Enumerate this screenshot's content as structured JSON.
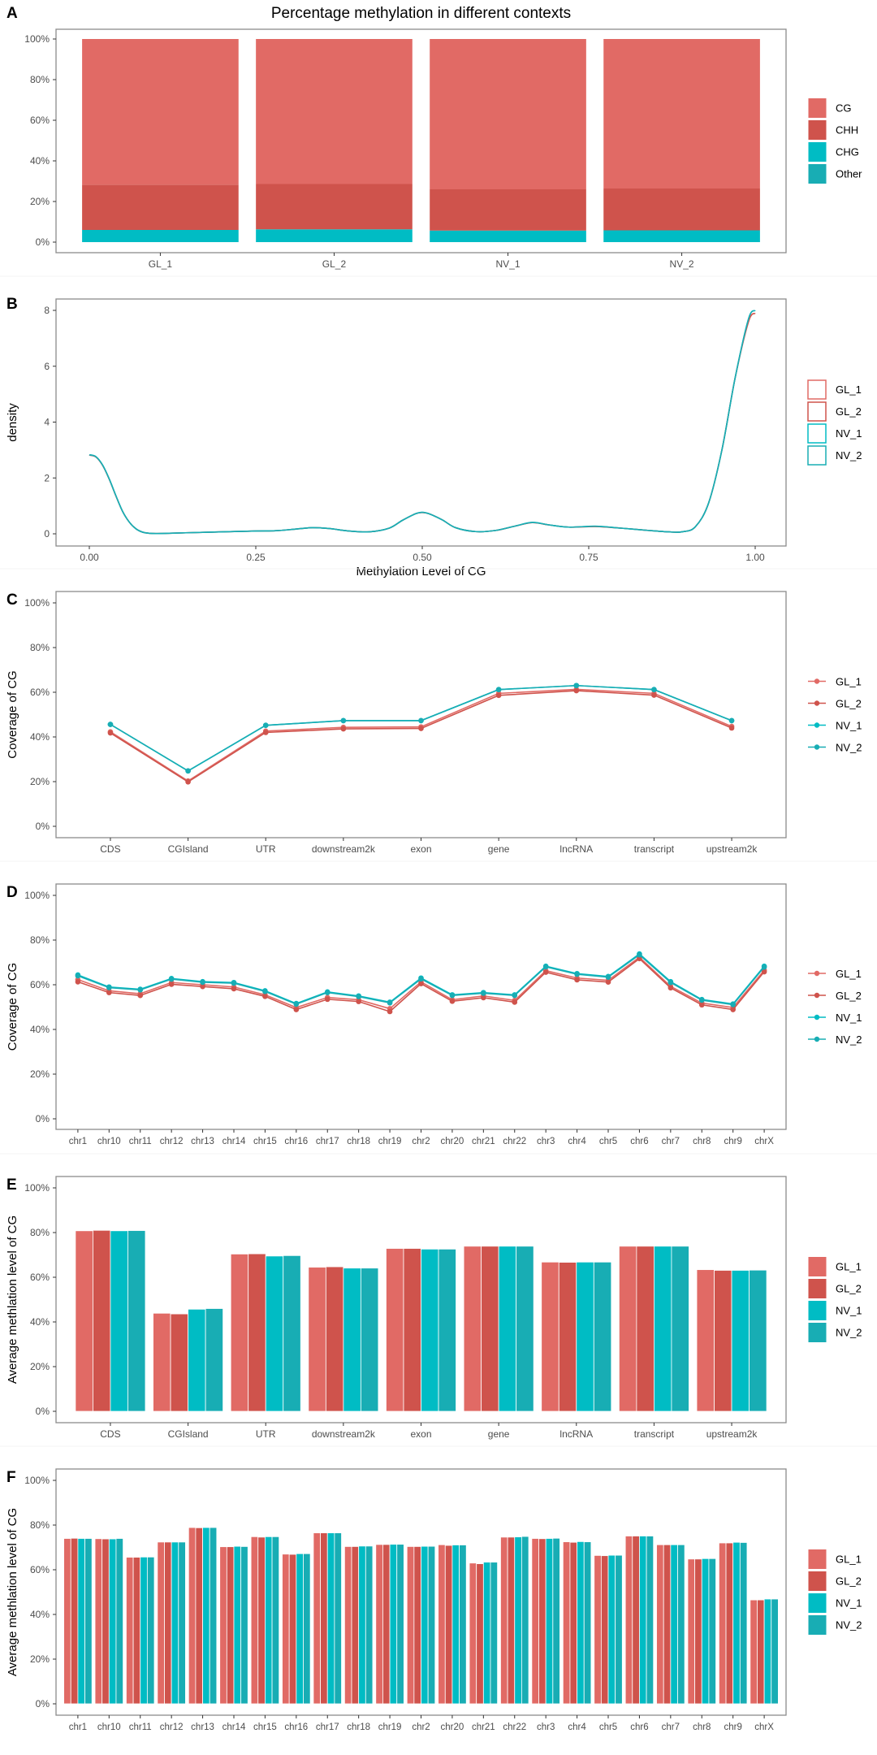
{
  "figure": {
    "panels": [
      "A",
      "B",
      "C",
      "D",
      "E",
      "F"
    ]
  },
  "colors": {
    "GL_1": "#E16A65",
    "GL_2": "#CF534C",
    "NV_1": "#00BCC4",
    "NV_2": "#18ADB4",
    "CG": "#E16A65",
    "CHH": "#CF534C",
    "CHG": "#00BCC4",
    "Other": "#18ADB4",
    "axis": "#7f7f7f",
    "tick_text": "#4d4d4d"
  },
  "chart_data": [
    {
      "id": "A",
      "panel_label": "A",
      "type": "bar",
      "stacked": true,
      "title": "Percentage methylation in different contexts",
      "xlabel": "",
      "ylabel": "",
      "categories": [
        "GL_1",
        "GL_2",
        "NV_1",
        "NV_2"
      ],
      "yticks": [
        "0%",
        "20%",
        "40%",
        "60%",
        "80%",
        "100%"
      ],
      "ylim": [
        0,
        100
      ],
      "legend_position": "right",
      "series": [
        {
          "name": "CG",
          "values": [
            71.7,
            71.4,
            74.0,
            73.6
          ]
        },
        {
          "name": "CHH",
          "values": [
            22.3,
            22.3,
            20.3,
            20.6
          ]
        },
        {
          "name": "CHG",
          "values": [
            6.0,
            6.3,
            5.7,
            5.8
          ]
        },
        {
          "name": "Other",
          "values": [
            0,
            0,
            0,
            0
          ]
        }
      ],
      "stack_order_bottom_to_top": [
        "Other",
        "CHG",
        "CHH",
        "CG"
      ]
    },
    {
      "id": "B",
      "panel_label": "B",
      "type": "line",
      "subtype": "density",
      "title": "",
      "xlabel": "Methylation Level of CG",
      "ylabel": "density",
      "xlim": [
        0,
        1
      ],
      "ylim": [
        0,
        8
      ],
      "xticks": [
        "0.00",
        "0.25",
        "0.50",
        "0.75",
        "1.00"
      ],
      "yticks": [
        "0",
        "2",
        "4",
        "6",
        "8"
      ],
      "legend_position": "right",
      "legend_style": "box",
      "x": [
        0.0,
        0.01,
        0.02,
        0.03,
        0.04,
        0.05,
        0.06,
        0.07,
        0.08,
        0.09,
        0.1,
        0.12,
        0.15,
        0.2,
        0.25,
        0.28,
        0.31,
        0.335,
        0.36,
        0.39,
        0.42,
        0.45,
        0.47,
        0.49,
        0.5,
        0.51,
        0.53,
        0.55,
        0.58,
        0.61,
        0.64,
        0.665,
        0.69,
        0.72,
        0.76,
        0.8,
        0.84,
        0.87,
        0.89,
        0.91,
        0.93,
        0.95,
        0.97,
        0.99,
        1.0
      ],
      "series": [
        {
          "name": "GL_1",
          "values": [
            2.82,
            2.75,
            2.45,
            1.95,
            1.35,
            0.8,
            0.42,
            0.18,
            0.06,
            0.02,
            0.01,
            0.02,
            0.04,
            0.07,
            0.1,
            0.11,
            0.17,
            0.22,
            0.19,
            0.1,
            0.07,
            0.2,
            0.48,
            0.72,
            0.76,
            0.72,
            0.5,
            0.22,
            0.08,
            0.12,
            0.28,
            0.4,
            0.32,
            0.24,
            0.26,
            0.2,
            0.12,
            0.07,
            0.07,
            0.25,
            1.1,
            3.0,
            5.6,
            7.6,
            7.9
          ]
        },
        {
          "name": "GL_2",
          "values": [
            2.82,
            2.75,
            2.45,
            1.95,
            1.35,
            0.8,
            0.42,
            0.18,
            0.06,
            0.02,
            0.01,
            0.02,
            0.04,
            0.07,
            0.1,
            0.11,
            0.17,
            0.22,
            0.19,
            0.1,
            0.07,
            0.2,
            0.48,
            0.72,
            0.76,
            0.72,
            0.5,
            0.22,
            0.08,
            0.12,
            0.28,
            0.4,
            0.32,
            0.24,
            0.26,
            0.2,
            0.12,
            0.07,
            0.07,
            0.25,
            1.1,
            3.0,
            5.6,
            7.6,
            7.9
          ]
        },
        {
          "name": "NV_1",
          "values": [
            2.83,
            2.76,
            2.46,
            1.96,
            1.36,
            0.8,
            0.42,
            0.18,
            0.06,
            0.02,
            0.01,
            0.02,
            0.04,
            0.07,
            0.1,
            0.11,
            0.17,
            0.22,
            0.19,
            0.1,
            0.07,
            0.2,
            0.48,
            0.72,
            0.77,
            0.72,
            0.5,
            0.22,
            0.08,
            0.12,
            0.28,
            0.41,
            0.32,
            0.24,
            0.27,
            0.2,
            0.12,
            0.07,
            0.07,
            0.25,
            1.1,
            3.0,
            5.6,
            7.7,
            8.0
          ]
        },
        {
          "name": "NV_2",
          "values": [
            2.83,
            2.76,
            2.46,
            1.96,
            1.36,
            0.8,
            0.42,
            0.18,
            0.06,
            0.02,
            0.01,
            0.02,
            0.04,
            0.07,
            0.1,
            0.11,
            0.17,
            0.22,
            0.19,
            0.1,
            0.07,
            0.2,
            0.48,
            0.72,
            0.77,
            0.72,
            0.5,
            0.22,
            0.08,
            0.12,
            0.28,
            0.41,
            0.32,
            0.24,
            0.27,
            0.2,
            0.12,
            0.07,
            0.07,
            0.25,
            1.1,
            3.0,
            5.6,
            7.7,
            8.0
          ]
        }
      ]
    },
    {
      "id": "C",
      "panel_label": "C",
      "type": "line",
      "title": "",
      "xlabel": "",
      "ylabel": "Coverage of CG",
      "categories": [
        "CDS",
        "CGIsland",
        "UTR",
        "downstream2k",
        "exon",
        "gene",
        "lncRNA",
        "transcript",
        "upstream2k"
      ],
      "yticks": [
        "0%",
        "20%",
        "40%",
        "60%",
        "80%",
        "100%"
      ],
      "ylim": [
        0,
        100
      ],
      "legend_position": "right",
      "series": [
        {
          "name": "GL_1",
          "values": [
            42.3,
            20.3,
            42.6,
            44.3,
            44.5,
            59.5,
            61.3,
            59.5,
            44.7
          ]
        },
        {
          "name": "GL_2",
          "values": [
            41.8,
            19.9,
            42.0,
            43.6,
            43.8,
            58.6,
            60.7,
            58.7,
            44.0
          ]
        },
        {
          "name": "NV_1",
          "values": [
            45.6,
            24.8,
            45.2,
            47.3,
            47.3,
            61.2,
            63.0,
            61.2,
            47.3
          ]
        },
        {
          "name": "NV_2",
          "values": [
            45.6,
            24.8,
            45.2,
            47.3,
            47.3,
            61.2,
            63.0,
            61.2,
            47.3
          ]
        }
      ]
    },
    {
      "id": "D",
      "panel_label": "D",
      "type": "line",
      "title": "",
      "xlabel": "",
      "ylabel": "Coverage of CG",
      "categories": [
        "chr1",
        "chr10",
        "chr11",
        "chr12",
        "chr13",
        "chr14",
        "chr15",
        "chr16",
        "chr17",
        "chr18",
        "chr19",
        "chr2",
        "chr20",
        "chr21",
        "chr22",
        "chr3",
        "chr4",
        "chr5",
        "chr6",
        "chr7",
        "chr8",
        "chr9",
        "chrX"
      ],
      "yticks": [
        "0%",
        "20%",
        "40%",
        "60%",
        "80%",
        "100%"
      ],
      "ylim": [
        0,
        100
      ],
      "legend_position": "right",
      "series": [
        {
          "name": "GL_1",
          "values": [
            62.3,
            57.3,
            56.0,
            61.0,
            60.0,
            59.0,
            55.5,
            49.8,
            54.3,
            53.3,
            49.3,
            61.3,
            53.3,
            55.0,
            53.0,
            66.3,
            63.0,
            62.0,
            72.3,
            59.3,
            51.8,
            49.8,
            66.5
          ]
        },
        {
          "name": "GL_2",
          "values": [
            61.3,
            56.5,
            55.2,
            60.2,
            59.2,
            58.2,
            54.8,
            48.9,
            53.5,
            52.5,
            48.0,
            60.5,
            52.6,
            54.2,
            52.2,
            65.6,
            62.2,
            61.2,
            71.7,
            58.6,
            51.0,
            48.9,
            65.8
          ]
        },
        {
          "name": "NV_1",
          "values": [
            64.4,
            59.0,
            58.0,
            62.8,
            61.4,
            61.0,
            57.3,
            51.6,
            56.8,
            55.0,
            52.2,
            63.0,
            55.5,
            56.5,
            55.5,
            68.3,
            65.0,
            63.7,
            73.8,
            61.4,
            53.4,
            51.4,
            68.3
          ]
        },
        {
          "name": "NV_2",
          "values": [
            64.0,
            58.7,
            57.7,
            62.5,
            61.1,
            60.7,
            57.0,
            51.3,
            56.5,
            54.7,
            51.9,
            62.6,
            55.2,
            56.2,
            55.2,
            68.0,
            64.7,
            63.4,
            73.4,
            61.0,
            53.1,
            51.1,
            67.9
          ]
        }
      ]
    },
    {
      "id": "E",
      "panel_label": "E",
      "type": "bar",
      "grouped": true,
      "title": "",
      "xlabel": "",
      "ylabel": "Average methlation level of CG",
      "categories": [
        "CDS",
        "CGIsland",
        "UTR",
        "downstream2k",
        "exon",
        "gene",
        "lncRNA",
        "transcript",
        "upstream2k"
      ],
      "yticks": [
        "0%",
        "20%",
        "40%",
        "60%",
        "80%",
        "100%"
      ],
      "ylim": [
        0,
        100
      ],
      "legend_position": "right",
      "series": [
        {
          "name": "GL_1",
          "values": [
            80.8,
            43.9,
            70.4,
            64.5,
            72.9,
            73.9,
            66.8,
            73.9,
            63.4
          ]
        },
        {
          "name": "GL_2",
          "values": [
            81.0,
            43.6,
            70.5,
            64.7,
            72.9,
            73.9,
            66.7,
            73.9,
            63.1
          ]
        },
        {
          "name": "NV_1",
          "values": [
            80.8,
            45.7,
            69.5,
            64.1,
            72.6,
            73.9,
            66.8,
            73.9,
            63.1
          ]
        },
        {
          "name": "NV_2",
          "values": [
            80.9,
            46.0,
            69.7,
            64.1,
            72.6,
            73.9,
            66.8,
            73.9,
            63.2
          ]
        }
      ]
    },
    {
      "id": "F",
      "panel_label": "F",
      "type": "bar",
      "grouped": true,
      "title": "",
      "xlabel": "",
      "ylabel": "Average methlation level of CG",
      "categories": [
        "chr1",
        "chr10",
        "chr11",
        "chr12",
        "chr13",
        "chr14",
        "chr15",
        "chr16",
        "chr17",
        "chr18",
        "chr19",
        "chr2",
        "chr20",
        "chr21",
        "chr22",
        "chr3",
        "chr4",
        "chr5",
        "chr6",
        "chr7",
        "chr8",
        "chr9",
        "chrX"
      ],
      "yticks": [
        "0%",
        "20%",
        "40%",
        "60%",
        "80%",
        "100%"
      ],
      "ylim": [
        0,
        100
      ],
      "legend_position": "right",
      "series": [
        {
          "name": "GL_1",
          "values": [
            74.0,
            73.9,
            65.6,
            72.4,
            78.9,
            70.3,
            74.8,
            67.0,
            76.5,
            70.4,
            71.3,
            70.4,
            71.2,
            63.0,
            74.6,
            74.0,
            72.5,
            66.4,
            75.1,
            71.2,
            64.8,
            72.0,
            46.5
          ]
        },
        {
          "name": "GL_2",
          "values": [
            74.1,
            73.8,
            65.6,
            72.4,
            78.8,
            70.3,
            74.6,
            66.9,
            76.5,
            70.4,
            71.3,
            70.4,
            70.9,
            62.7,
            74.6,
            73.9,
            72.3,
            66.3,
            75.1,
            71.2,
            64.8,
            72.0,
            46.5
          ]
        },
        {
          "name": "NV_1",
          "values": [
            74.0,
            73.8,
            65.7,
            72.4,
            78.9,
            70.5,
            74.8,
            67.2,
            76.5,
            70.6,
            71.4,
            70.5,
            71.1,
            63.4,
            74.7,
            74.0,
            72.6,
            66.5,
            75.1,
            71.2,
            65.0,
            72.3,
            46.9
          ]
        },
        {
          "name": "NV_2",
          "values": [
            74.0,
            74.0,
            65.7,
            72.4,
            78.9,
            70.4,
            74.8,
            67.2,
            76.5,
            70.6,
            71.4,
            70.5,
            71.1,
            63.4,
            74.9,
            74.1,
            72.5,
            66.5,
            75.1,
            71.2,
            65.0,
            72.2,
            46.9
          ]
        }
      ]
    }
  ]
}
